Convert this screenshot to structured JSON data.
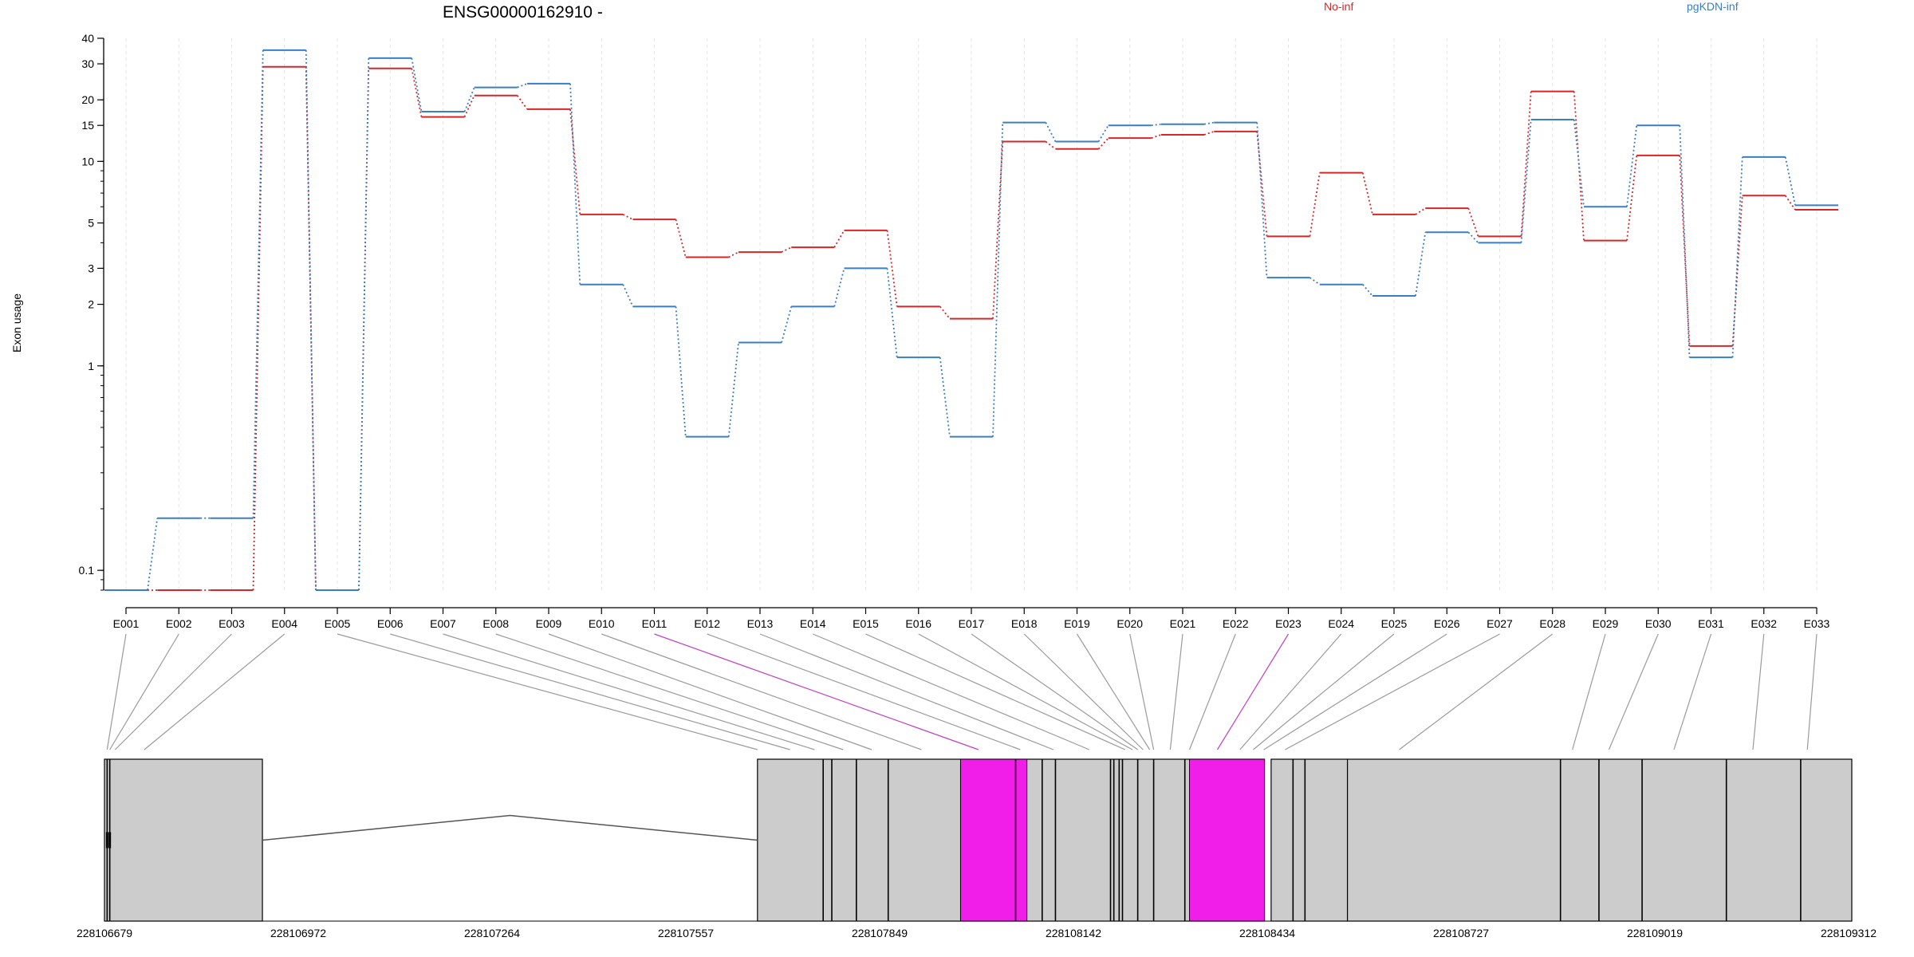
{
  "chart_data": {
    "type": "line",
    "title": "ENSG00000162910 -",
    "ylabel": "Exon usage",
    "xlabel": "",
    "yscale": "log",
    "ylim": [
      0.08,
      40
    ],
    "yticks": [
      0.1,
      1,
      2,
      3,
      5,
      10,
      15,
      20,
      30,
      40
    ],
    "ytick_labels": [
      "0.1",
      "1",
      "2",
      "3",
      "5",
      "10",
      "15",
      "20",
      "30",
      "40"
    ],
    "grid": "vertical dashed",
    "legend_placement": "top-right",
    "categories": [
      "E001",
      "E002",
      "E003",
      "E004",
      "E005",
      "E006",
      "E007",
      "E008",
      "E009",
      "E010",
      "E011",
      "E012",
      "E013",
      "E014",
      "E015",
      "E016",
      "E017",
      "E018",
      "E019",
      "E020",
      "E021",
      "E022",
      "E023",
      "E024",
      "E025",
      "E026",
      "E027",
      "E028",
      "E029",
      "E030",
      "E031",
      "E032",
      "E033"
    ],
    "series": [
      {
        "name": "No-inf",
        "color": "#d62728",
        "values": [
          0.08,
          0.08,
          0.08,
          29,
          0.08,
          28.5,
          16.5,
          21,
          18,
          5.5,
          5.2,
          3.4,
          3.6,
          3.8,
          4.6,
          1.95,
          1.7,
          12.5,
          11.5,
          13,
          13.5,
          14,
          4.3,
          8.8,
          5.5,
          5.9,
          4.3,
          22,
          4.1,
          10.7,
          1.25,
          6.8,
          5.8
        ]
      },
      {
        "name": "pgKDN-inf",
        "color": "#3a7fc1",
        "values": [
          0.08,
          0.18,
          0.18,
          35,
          0.08,
          32,
          17.5,
          23,
          24,
          2.5,
          1.95,
          0.45,
          1.3,
          1.95,
          3.0,
          1.1,
          0.45,
          15.5,
          12.5,
          15,
          15.2,
          15.5,
          2.7,
          2.5,
          2.2,
          4.5,
          4.0,
          16,
          6.0,
          15,
          1.1,
          10.5,
          6.1
        ]
      }
    ],
    "highlighted_exons": [
      "E011",
      "E023"
    ],
    "gene_model": {
      "coordinate_labels": [
        "228106679",
        "228106972",
        "228107264",
        "228107557",
        "228107849",
        "228108142",
        "228108434",
        "228108727",
        "228109019",
        "228109312"
      ],
      "highlight_color": "#f01ee8",
      "exon_color": "#cccccc"
    }
  }
}
